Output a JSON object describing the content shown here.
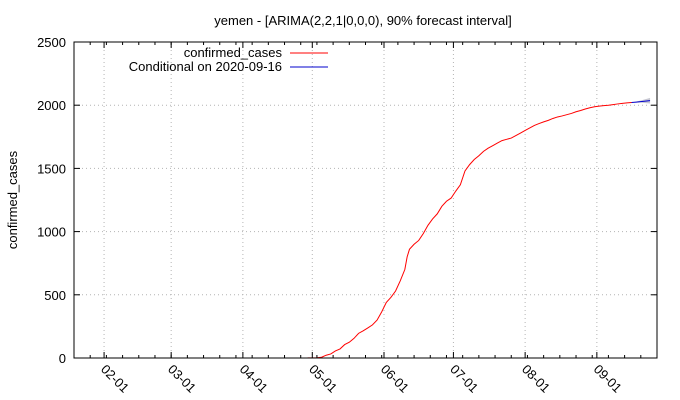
{
  "chart_data": {
    "type": "line",
    "title": "yemen -  [ARIMA(2,2,1|0,0,0), 90% forecast interval]",
    "xlabel": "",
    "ylabel": "confirmed_cases",
    "x_axis_type": "date",
    "xlim": [
      "2020-01-19",
      "2020-09-27"
    ],
    "ylim": [
      0,
      2500
    ],
    "y_ticks": [
      0,
      500,
      1000,
      1500,
      2000,
      2500
    ],
    "x_ticks": [
      {
        "date": "2020-02-01",
        "label": "02-01"
      },
      {
        "date": "2020-03-01",
        "label": "03-01"
      },
      {
        "date": "2020-04-01",
        "label": "04-01"
      },
      {
        "date": "2020-05-01",
        "label": "05-01"
      },
      {
        "date": "2020-06-01",
        "label": "06-01"
      },
      {
        "date": "2020-07-01",
        "label": "07-01"
      },
      {
        "date": "2020-08-01",
        "label": "08-01"
      },
      {
        "date": "2020-09-01",
        "label": "09-01"
      }
    ],
    "grid": true,
    "legend_position": "top-left",
    "series": [
      {
        "name": "confirmed_cases",
        "color": "#ff0000",
        "points": [
          [
            "2020-04-29",
            1
          ],
          [
            "2020-05-01",
            1
          ],
          [
            "2020-05-03",
            2
          ],
          [
            "2020-05-05",
            6
          ],
          [
            "2020-05-07",
            22
          ],
          [
            "2020-05-09",
            32
          ],
          [
            "2020-05-11",
            56
          ],
          [
            "2020-05-13",
            72
          ],
          [
            "2020-05-15",
            106
          ],
          [
            "2020-05-17",
            125
          ],
          [
            "2020-05-19",
            155
          ],
          [
            "2020-05-21",
            195
          ],
          [
            "2020-05-23",
            215
          ],
          [
            "2020-05-25",
            238
          ],
          [
            "2020-05-27",
            262
          ],
          [
            "2020-05-29",
            300
          ],
          [
            "2020-05-31",
            365
          ],
          [
            "2020-06-02",
            440
          ],
          [
            "2020-06-04",
            480
          ],
          [
            "2020-06-06",
            530
          ],
          [
            "2020-06-08",
            610
          ],
          [
            "2020-06-10",
            700
          ],
          [
            "2020-06-11",
            800
          ],
          [
            "2020-06-12",
            860
          ],
          [
            "2020-06-14",
            900
          ],
          [
            "2020-06-16",
            930
          ],
          [
            "2020-06-18",
            985
          ],
          [
            "2020-06-20",
            1050
          ],
          [
            "2020-06-22",
            1100
          ],
          [
            "2020-06-24",
            1140
          ],
          [
            "2020-06-26",
            1200
          ],
          [
            "2020-06-28",
            1240
          ],
          [
            "2020-06-30",
            1265
          ],
          [
            "2020-07-02",
            1320
          ],
          [
            "2020-07-04",
            1370
          ],
          [
            "2020-07-06",
            1480
          ],
          [
            "2020-07-08",
            1530
          ],
          [
            "2020-07-10",
            1570
          ],
          [
            "2020-07-12",
            1600
          ],
          [
            "2020-07-14",
            1635
          ],
          [
            "2020-07-16",
            1660
          ],
          [
            "2020-07-18",
            1680
          ],
          [
            "2020-07-20",
            1700
          ],
          [
            "2020-07-22",
            1720
          ],
          [
            "2020-07-24",
            1730
          ],
          [
            "2020-07-26",
            1740
          ],
          [
            "2020-07-28",
            1760
          ],
          [
            "2020-07-30",
            1780
          ],
          [
            "2020-08-01",
            1800
          ],
          [
            "2020-08-03",
            1820
          ],
          [
            "2020-08-05",
            1840
          ],
          [
            "2020-08-07",
            1855
          ],
          [
            "2020-08-09",
            1868
          ],
          [
            "2020-08-11",
            1880
          ],
          [
            "2020-08-13",
            1895
          ],
          [
            "2020-08-15",
            1907
          ],
          [
            "2020-08-17",
            1915
          ],
          [
            "2020-08-19",
            1925
          ],
          [
            "2020-08-21",
            1935
          ],
          [
            "2020-08-23",
            1948
          ],
          [
            "2020-08-25",
            1958
          ],
          [
            "2020-08-27",
            1970
          ],
          [
            "2020-08-29",
            1980
          ],
          [
            "2020-08-31",
            1988
          ],
          [
            "2020-09-02",
            1993
          ],
          [
            "2020-09-04",
            1997
          ],
          [
            "2020-09-06",
            2000
          ],
          [
            "2020-09-08",
            2005
          ],
          [
            "2020-09-10",
            2010
          ],
          [
            "2020-09-12",
            2014
          ],
          [
            "2020-09-14",
            2018
          ],
          [
            "2020-09-16",
            2021
          ]
        ]
      },
      {
        "name": "Conditional on 2020-09-16",
        "color": "#0000cd",
        "points": [
          [
            "2020-09-16",
            2021
          ],
          [
            "2020-09-19",
            2026
          ],
          [
            "2020-09-22",
            2032
          ],
          [
            "2020-09-24",
            2036
          ]
        ]
      }
    ],
    "forecast_interval": {
      "color": "#c8c8d2",
      "upper": [
        [
          "2020-09-16",
          2021
        ],
        [
          "2020-09-20",
          2037
        ],
        [
          "2020-09-24",
          2058
        ]
      ],
      "lower": [
        [
          "2020-09-16",
          2021
        ],
        [
          "2020-09-20",
          2020
        ],
        [
          "2020-09-24",
          2013
        ]
      ]
    }
  }
}
